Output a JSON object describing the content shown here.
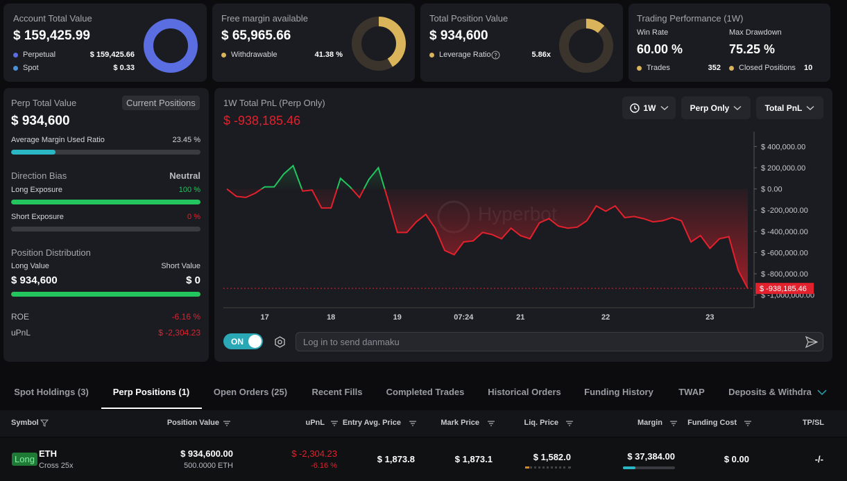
{
  "cards": [
    {
      "title": "Account Total Value",
      "value": "$ 159,425.99",
      "rows": [
        {
          "name": "Perpetual",
          "value": 159425.66,
          "label": "$ 159,425.66",
          "color": "#5b6ee1"
        },
        {
          "name": "Spot",
          "value": 0.33,
          "label": "$ 0.33",
          "color": "#4a90d9"
        }
      ]
    },
    {
      "title": "Free margin available",
      "value": "$ 65,965.66",
      "range": [
        0,
        100
      ],
      "rows": [
        {
          "name": "Withdrawable",
          "value": 41.38,
          "label": "41.38 %",
          "color": "#d9b45a"
        }
      ]
    },
    {
      "title": "Total Position Value",
      "value": "$ 934,600",
      "range": [
        0,
        50
      ],
      "rows": [
        {
          "name": "Leverage Ratio",
          "value": 5.86,
          "label": "5.86x",
          "color": "#d9b45a"
        }
      ]
    }
  ],
  "performance": {
    "title": "Trading Performance (1W)",
    "win_rate_label": "Win Rate",
    "win_rate": "60.00 %",
    "drawdown_label": "Max Drawdown",
    "drawdown": "75.25 %",
    "rows": [
      {
        "name": "Trades",
        "value": "352"
      },
      {
        "name": "Closed Positions",
        "value": "10"
      }
    ]
  },
  "perp": {
    "title": "Perp Total Value",
    "button": "Current Positions",
    "value": "$ 934,600",
    "bar_range": [
      0,
      100
    ],
    "margin_label": "Average Margin Used Ratio",
    "margin": {
      "value": 23.45,
      "label": "23.45 %"
    },
    "bias_label": "Direction Bias",
    "bias": "Neutral",
    "long_label": "Long Exposure",
    "long": {
      "value": 100,
      "label": "100 %"
    },
    "short_label": "Short Exposure",
    "short": {
      "value": 0,
      "label": "0 %"
    },
    "dist_label": "Position Distribution",
    "long_value_label": "Long Value",
    "short_value_label": "Short Value",
    "long_value": {
      "value": 934600,
      "label": "$ 934,600"
    },
    "short_value": {
      "value": 0,
      "label": "$ 0"
    },
    "roe_label": "ROE",
    "roe": "-6.16 %",
    "upnl_label": "uPnL",
    "upnl": "$ -2,304.23"
  },
  "controls": {
    "period": "1W",
    "scope": "Perp Only",
    "metric": "Total PnL",
    "toggle": "ON",
    "placeholder": "Log in to send danmaku"
  },
  "chart_data": {
    "type": "line",
    "title": "1W Total PnL (Perp Only)",
    "subtitle": "$ -938,185.46",
    "watermark": "Hyperbot",
    "color": "#22c55e",
    "negative_color": "#e3212d",
    "categories": [
      null,
      null,
      null,
      null,
      "17",
      null,
      null,
      null,
      null,
      null,
      null,
      "18",
      null,
      null,
      null,
      null,
      null,
      null,
      "19",
      null,
      null,
      null,
      null,
      null,
      null,
      "07:24",
      null,
      null,
      null,
      null,
      null,
      "21",
      null,
      null,
      null,
      null,
      null,
      null,
      null,
      null,
      "22",
      null,
      null,
      null,
      null,
      null,
      null,
      null,
      null,
      null,
      null,
      "23",
      null,
      null,
      null,
      null
    ],
    "values": [
      0,
      -70000,
      -80000,
      -40000,
      20000,
      20000,
      140000,
      220000,
      -20000,
      -10000,
      -180000,
      -180000,
      100000,
      20000,
      -80000,
      90000,
      200000,
      -100000,
      -410000,
      -410000,
      -310000,
      -240000,
      -370000,
      -580000,
      -620000,
      -500000,
      -490000,
      -410000,
      -430000,
      -470000,
      -370000,
      -440000,
      -470000,
      -320000,
      -280000,
      -350000,
      -370000,
      -360000,
      -300000,
      -160000,
      -210000,
      -160000,
      -270000,
      -260000,
      -280000,
      -310000,
      -300000,
      -270000,
      -300000,
      -500000,
      -440000,
      -560000,
      -470000,
      -450000,
      -770000,
      -938185.46
    ],
    "ylim": [
      -1120000,
      540000
    ],
    "yticks": [
      {
        "value": 400000,
        "label": "$ 400,000.00"
      },
      {
        "value": 200000,
        "label": "$ 200,000.00"
      },
      {
        "value": 0,
        "label": "$ 0.00"
      },
      {
        "value": -200000,
        "label": "$ -200,000.00"
      },
      {
        "value": -400000,
        "label": "$ -400,000.00"
      },
      {
        "value": -600000,
        "label": "$ -600,000.00"
      },
      {
        "value": -800000,
        "label": "$ -800,000.00"
      },
      {
        "value": -1000000,
        "label": "$ -1,000,000.00"
      }
    ]
  },
  "tabs": {
    "active": 1,
    "items": [
      "Spot Holdings (3)",
      "Perp Positions (1)",
      "Open Orders (25)",
      "Recent Fills",
      "Completed Trades",
      "Historical Orders",
      "Funding History",
      "TWAP",
      "Deposits & Withdra"
    ]
  },
  "table": {
    "columns": [
      "Symbol",
      "Position Value",
      "uPnL",
      "Entry Avg. Price",
      "Mark Price",
      "Liq. Price",
      "Margin",
      "Funding Cost",
      "TP/SL"
    ],
    "rows": [
      {
        "side": "Long",
        "symbol": "ETH",
        "mode": "Cross 25x",
        "position_value": "$ 934,600.00",
        "size": "500.0000 ETH",
        "upnl": "$ -2,304.23",
        "upnl_pct": "-6.16 %",
        "entry": "$ 1,873.8",
        "mark": "$ 1,873.1",
        "liq": "$ 1,582.0",
        "margin": "$ 37,384.00",
        "funding": "$ 0.00",
        "tpsl": "-/-"
      }
    ]
  }
}
